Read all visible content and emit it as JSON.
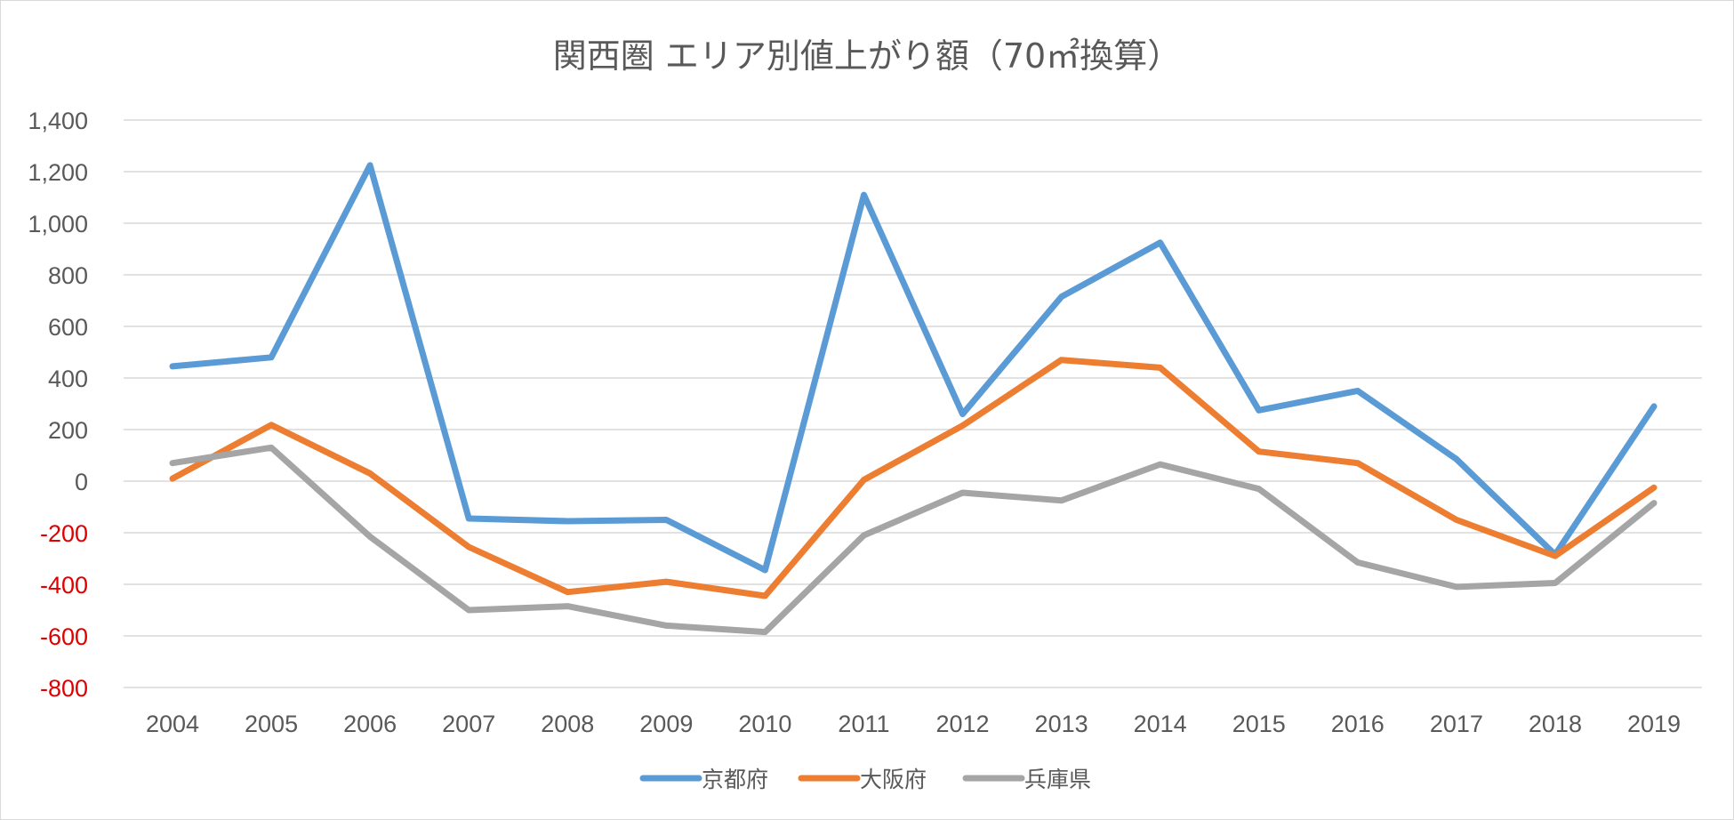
{
  "chart_data": {
    "type": "line",
    "title": "関西圏 エリア別値上がり額（70㎡換算）",
    "xlabel": "",
    "ylabel": "",
    "categories": [
      "2004",
      "2005",
      "2006",
      "2007",
      "2008",
      "2009",
      "2010",
      "2011",
      "2012",
      "2013",
      "2014",
      "2015",
      "2016",
      "2017",
      "2018",
      "2019"
    ],
    "ylim": [
      -800,
      1400
    ],
    "yticks": [
      1400,
      1200,
      1000,
      800,
      600,
      400,
      200,
      0,
      -200,
      -400,
      -600,
      -800
    ],
    "ytick_labels": [
      "1,400",
      "1,200",
      "1,000",
      "800",
      "600",
      "400",
      "200",
      "0",
      "-200",
      "-400",
      "-600",
      "-800"
    ],
    "grid": true,
    "legend_position": "bottom",
    "colors": {
      "negative_tick": "#e00000",
      "positive_tick": "#595959"
    },
    "series": [
      {
        "name": "京都府",
        "color": "#5b9bd5",
        "values": [
          445,
          480,
          1225,
          -145,
          -155,
          -150,
          -345,
          1110,
          260,
          715,
          925,
          275,
          350,
          85,
          -285,
          290
        ]
      },
      {
        "name": "大阪府",
        "color": "#ed7d31",
        "values": [
          10,
          218,
          30,
          -255,
          -430,
          -390,
          -445,
          5,
          215,
          470,
          440,
          115,
          70,
          -150,
          -290,
          -25
        ]
      },
      {
        "name": "兵庫県",
        "color": "#a5a5a5",
        "values": [
          70,
          130,
          -215,
          -500,
          -485,
          -560,
          -585,
          -210,
          -45,
          -75,
          65,
          -30,
          -315,
          -410,
          -395,
          -85
        ]
      }
    ]
  }
}
